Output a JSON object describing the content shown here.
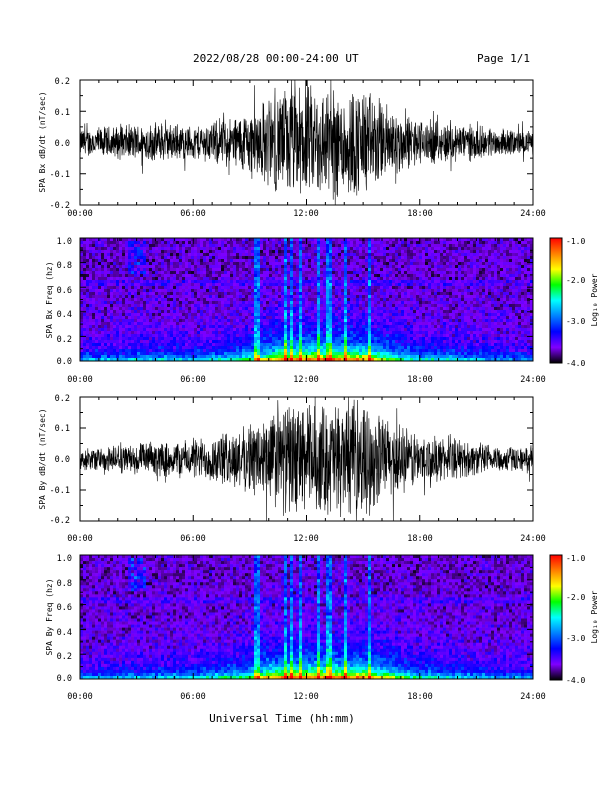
{
  "header": {
    "title": "2022/08/28  00:00-24:00 UT",
    "page": "Page 1/1"
  },
  "xaxis": {
    "ticks": [
      "00:00",
      "06:00",
      "12:00",
      "18:00",
      "24:00"
    ],
    "label": "Universal Time (hh:mm)"
  },
  "colorbar": {
    "label": "Log₁₀ Power",
    "ticks": [
      "-1.0",
      "-2.0",
      "-3.0",
      "-4.0"
    ],
    "colors": [
      "#ff0000",
      "#ff8000",
      "#ffff00",
      "#00ff00",
      "#00ffff",
      "#0080ff",
      "#0000ff",
      "#8000ff",
      "#000000"
    ]
  },
  "chart_data": [
    {
      "type": "line",
      "ylabel": "SPA Bx dB/dt (nT/sec)",
      "yticks": [
        "0.2",
        "0.1",
        "0.0",
        "-0.1",
        "-0.2"
      ],
      "xlim": [
        0,
        24
      ],
      "ylim": [
        -0.2,
        0.2
      ],
      "envelope_x_hours": [
        0,
        2,
        4,
        6,
        8,
        9,
        10,
        11,
        12,
        13,
        14,
        15,
        16,
        17,
        18,
        20,
        22,
        24
      ],
      "envelope_amp": [
        0.05,
        0.06,
        0.07,
        0.06,
        0.09,
        0.12,
        0.16,
        0.2,
        0.2,
        0.2,
        0.2,
        0.2,
        0.15,
        0.11,
        0.08,
        0.07,
        0.05,
        0.04
      ],
      "color": "#000000"
    },
    {
      "type": "heatmap",
      "ylabel": "SPA Bx Freq (hz)",
      "yticks": [
        "1.0",
        "0.8",
        "0.6",
        "0.4",
        "0.2",
        "0.0"
      ],
      "xlim": [
        0,
        24
      ],
      "ylim": [
        0.0,
        1.0
      ],
      "zlim": [
        -4.0,
        -1.0
      ],
      "zlabel": "Log₁₀ Power"
    },
    {
      "type": "line",
      "ylabel": "SPA By dB/dt (nT/sec)",
      "yticks": [
        "0.2",
        "0.1",
        "0.0",
        "-0.1",
        "-0.2"
      ],
      "xlim": [
        0,
        24
      ],
      "ylim": [
        -0.2,
        0.2
      ],
      "envelope_x_hours": [
        0,
        2,
        4,
        6,
        8,
        9,
        10,
        11,
        12,
        13,
        14,
        15,
        16,
        17,
        18,
        20,
        22,
        24
      ],
      "envelope_amp": [
        0.04,
        0.05,
        0.06,
        0.07,
        0.1,
        0.12,
        0.17,
        0.2,
        0.2,
        0.2,
        0.2,
        0.2,
        0.16,
        0.12,
        0.09,
        0.07,
        0.05,
        0.04
      ],
      "color": "#000000"
    },
    {
      "type": "heatmap",
      "ylabel": "SPA By Freq (hz)",
      "yticks": [
        "1.0",
        "0.8",
        "0.6",
        "0.4",
        "0.2",
        "0.0"
      ],
      "xlim": [
        0,
        24
      ],
      "ylim": [
        0.0,
        1.0
      ],
      "zlim": [
        -4.0,
        -1.0
      ],
      "zlabel": "Log₁₀ Power"
    }
  ]
}
